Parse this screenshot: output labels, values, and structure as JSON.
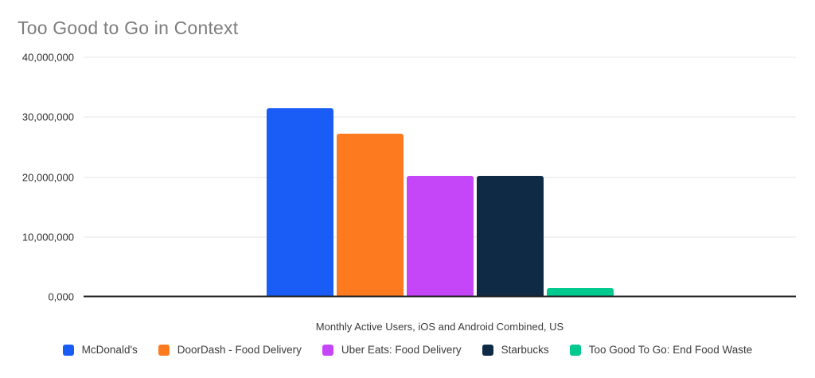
{
  "title": "Too Good to Go in Context",
  "chart_data": {
    "type": "bar",
    "title": "Too Good to Go in Context",
    "xlabel": "Monthly Active Users, iOS and Android Combined, US",
    "ylabel": "",
    "ylim": [
      0,
      40000000
    ],
    "grid": true,
    "legend_position": "bottom",
    "yticks": [
      {
        "value": 0,
        "label": "0,000"
      },
      {
        "value": 10000000,
        "label": "10,000,000"
      },
      {
        "value": 20000000,
        "label": "20,000,000"
      },
      {
        "value": 30000000,
        "label": "30,000,000"
      },
      {
        "value": 40000000,
        "label": "40,000,000"
      }
    ],
    "series": [
      {
        "name": "McDonald's",
        "value": 31500000,
        "color": "#1a5cf6"
      },
      {
        "name": "DoorDash - Food Delivery",
        "value": 27200000,
        "color": "#fd7b1e"
      },
      {
        "name": "Uber Eats: Food Delivery",
        "value": 20200000,
        "color": "#c546f8"
      },
      {
        "name": "Starbucks",
        "value": 20200000,
        "color": "#0e2a44"
      },
      {
        "name": "Too Good To Go: End Food Waste",
        "value": 1500000,
        "color": "#02c98d"
      }
    ]
  },
  "colors": {
    "gridline": "#e4e4e4",
    "axis_baseline": "#1f1f1f",
    "title_text": "#7d7d7d",
    "tick_text": "#2e2e2e",
    "label_text": "#3b3b3b"
  }
}
